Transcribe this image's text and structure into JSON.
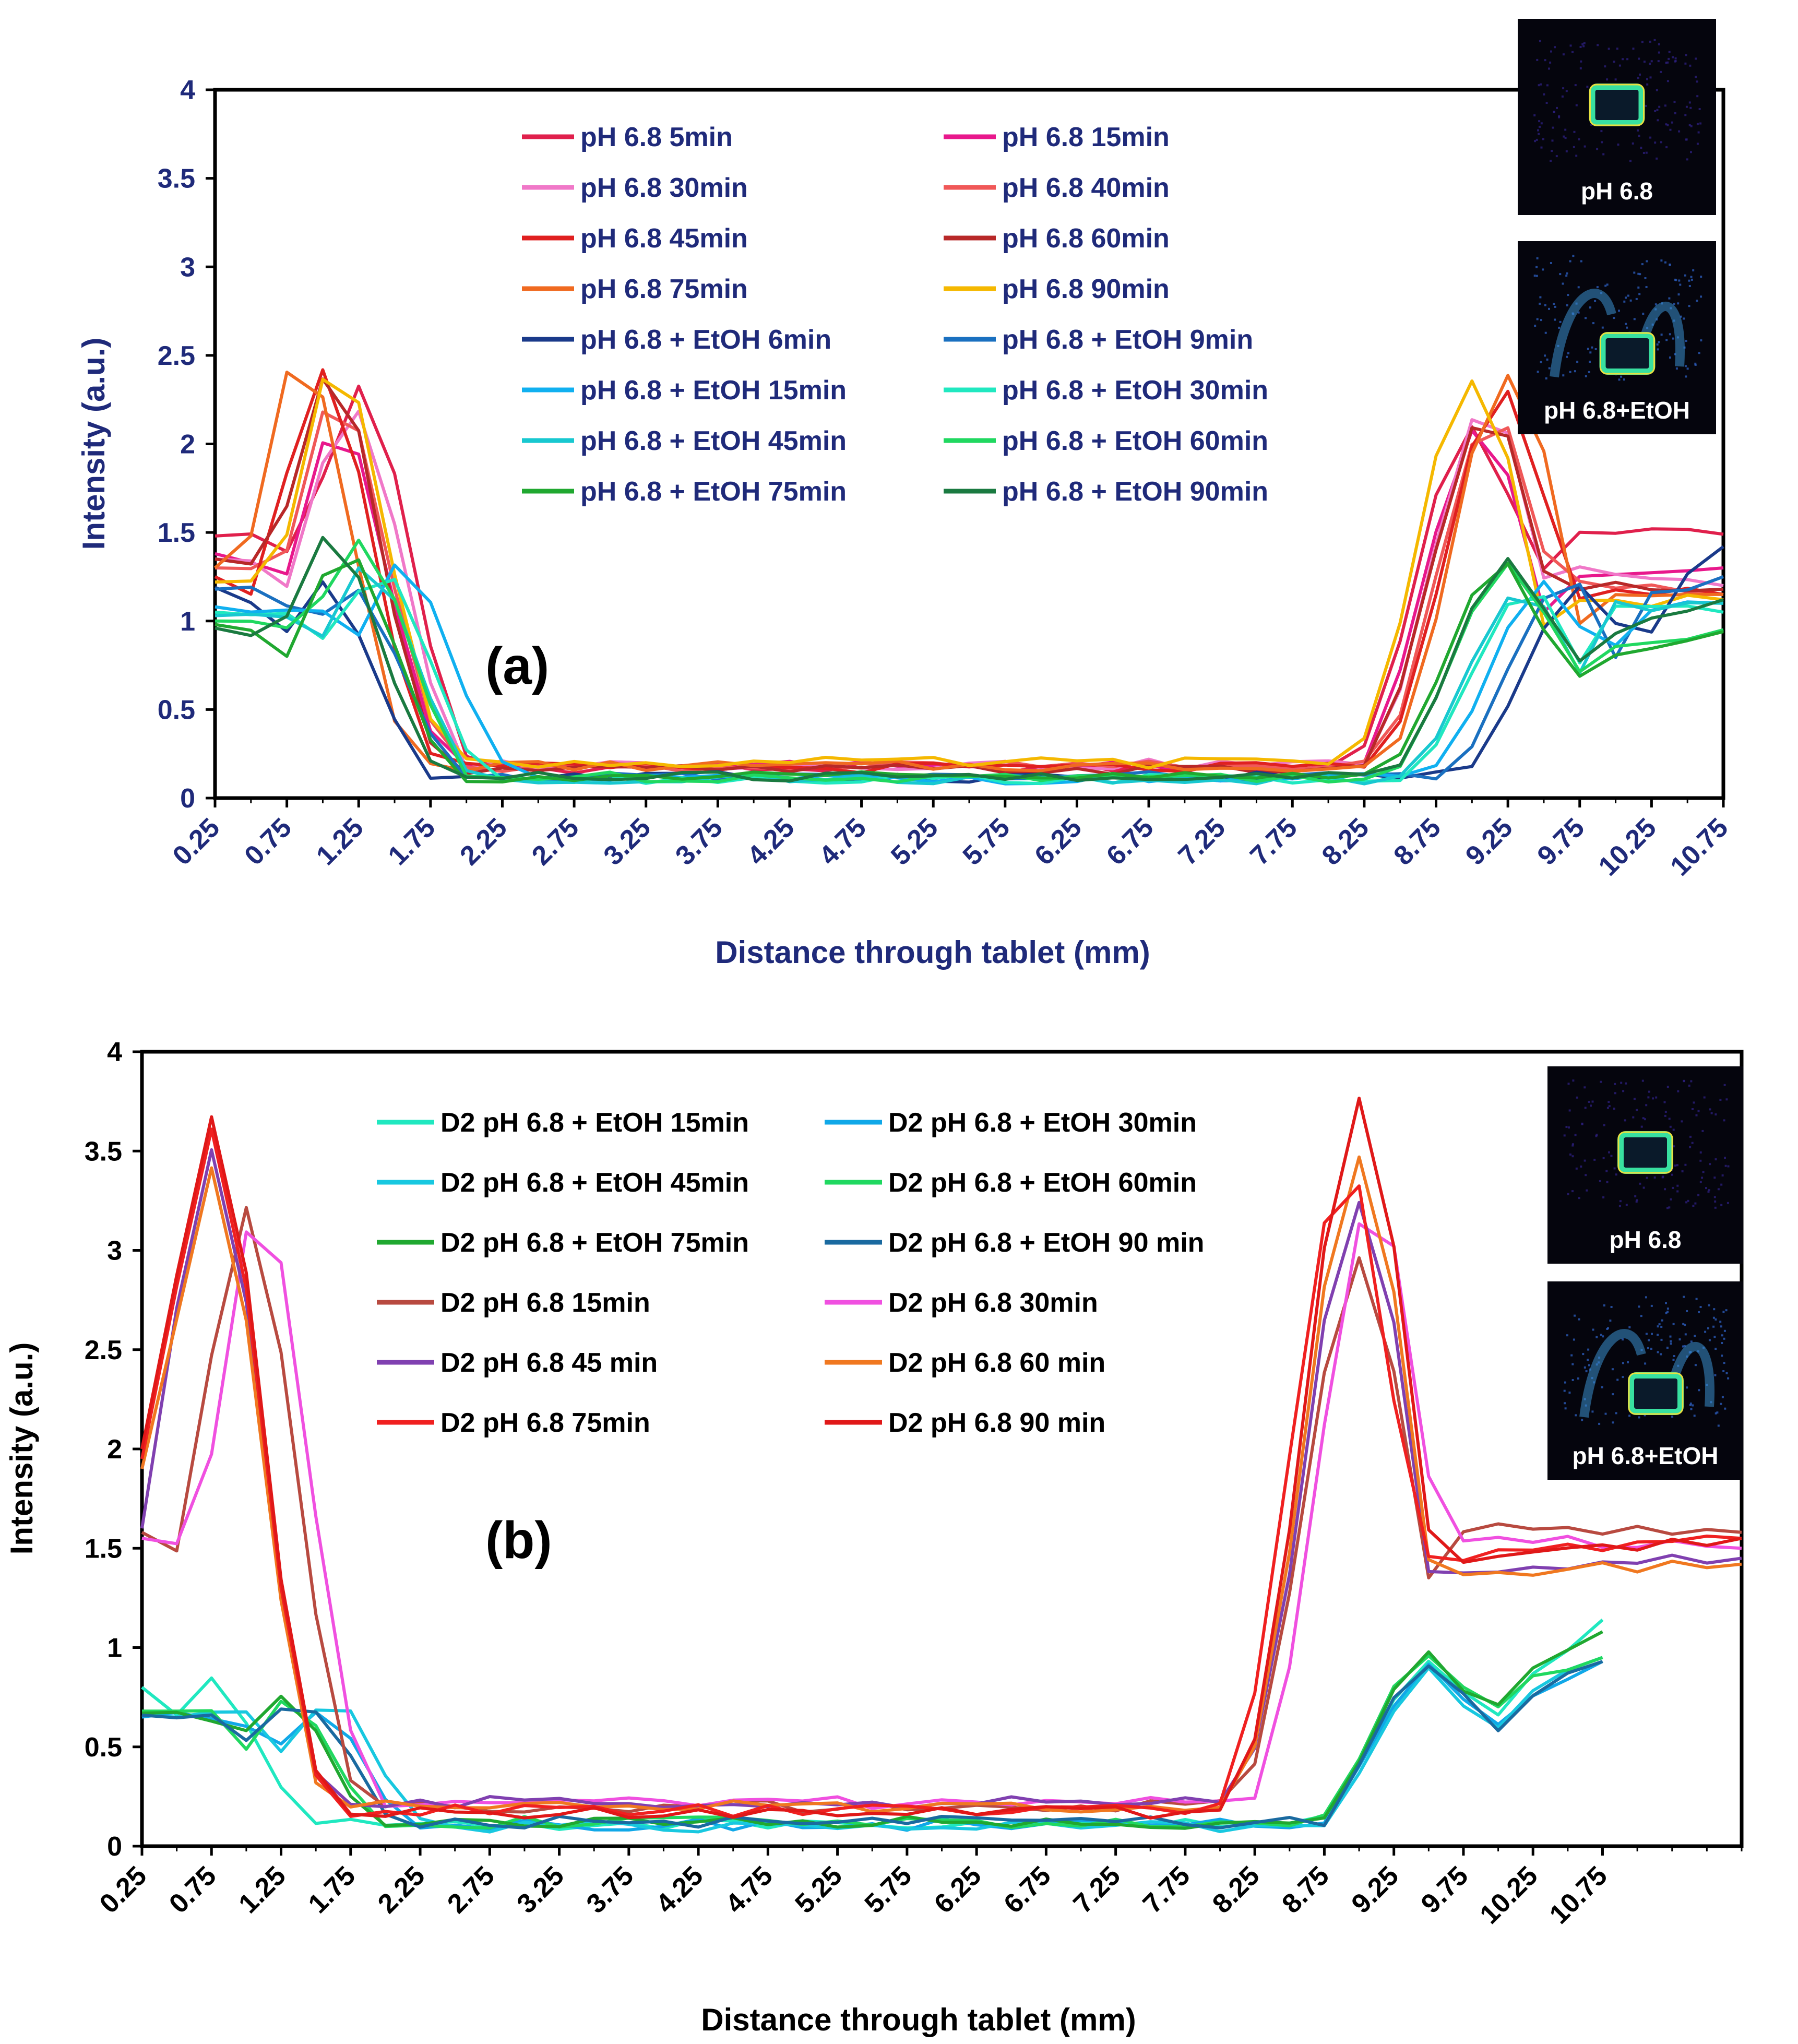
{
  "chart_data": [
    {
      "type": "line",
      "panel_label": "(a)",
      "xlabel": "Distance through tablet (mm)",
      "ylabel": "Intensity (a.u.)",
      "ylim": [
        0,
        4
      ],
      "y_ticks": [
        "0",
        "0.5",
        "1",
        "1.5",
        "2",
        "2.5",
        "3",
        "3.5",
        "4"
      ],
      "x_tick_labels": [
        "0.25",
        "0.75",
        "1.25",
        "1.75",
        "2.25",
        "2.75",
        "3.25",
        "3.75",
        "4.25",
        "4.75",
        "5.25",
        "5.75",
        "6.25",
        "6.75",
        "7.25",
        "7.75",
        "8.25",
        "8.75",
        "9.25",
        "9.75",
        "10.25",
        "10.75"
      ],
      "xlim": [
        0.25,
        10.75
      ],
      "axis_text_color": "#1f2a7a",
      "insets": [
        "pH 6.8",
        "pH 6.8+EtOH"
      ],
      "series": [
        {
          "name": "pH 6.8 5min",
          "color": "#e0204c",
          "peak_left": 2.34,
          "peak_left_x": 1.25,
          "peak_right": 2.12,
          "peak_right_x": 9.0,
          "start": 1.48,
          "end": 1.49,
          "right_trail": 1.52,
          "base": 0.17
        },
        {
          "name": "pH 6.8 15min",
          "color": "#e8188c",
          "peak_left": 2.1,
          "peak_left_x": 1.1,
          "peak_right": 2.08,
          "peak_right_x": 9.05,
          "start": 1.38,
          "end": 1.3,
          "right_trail": 1.25,
          "base": 0.18
        },
        {
          "name": "pH 6.8 30min",
          "color": "#f078c8",
          "peak_left": 2.2,
          "peak_left_x": 1.2,
          "peak_right": 2.2,
          "peak_right_x": 9.1,
          "start": 1.35,
          "end": 1.2,
          "right_trail": 1.3,
          "base": 0.19
        },
        {
          "name": "pH 6.8 40min",
          "color": "#f05858",
          "peak_left": 2.3,
          "peak_left_x": 1.1,
          "peak_right": 2.15,
          "peak_right_x": 9.15,
          "start": 1.3,
          "end": 1.15,
          "right_trail": 1.22,
          "base": 0.18
        },
        {
          "name": "pH 6.8 45min",
          "color": "#e02020",
          "peak_left": 2.4,
          "peak_left_x": 1.0,
          "peak_right": 2.3,
          "peak_right_x": 9.2,
          "start": 1.25,
          "end": 1.15,
          "right_trail": 1.2,
          "base": 0.17
        },
        {
          "name": "pH 6.8 60min",
          "color": "#b82828",
          "peak_left": 2.42,
          "peak_left_x": 1.05,
          "peak_right": 2.18,
          "peak_right_x": 9.1,
          "start": 1.35,
          "end": 1.18,
          "right_trail": 1.2,
          "base": 0.16
        },
        {
          "name": "pH 6.8 75min",
          "color": "#f06a20",
          "peak_left": 2.48,
          "peak_left_x": 0.85,
          "peak_right": 2.4,
          "peak_right_x": 9.25,
          "start": 1.3,
          "end": 1.15,
          "right_trail": 1.15,
          "base": 0.18
        },
        {
          "name": "pH 6.8 90min",
          "color": "#f5b800",
          "peak_left": 2.48,
          "peak_left_x": 1.1,
          "peak_right": 2.38,
          "peak_right_x": 9.0,
          "start": 1.22,
          "end": 1.12,
          "right_trail": 1.1,
          "base": 0.2
        },
        {
          "name": "pH 6.8 + EtOH 6min",
          "color": "#1a3a8a",
          "peak_left": 1.22,
          "peak_left_x": 1.0,
          "peak_right": 1.2,
          "peak_right_x": 9.75,
          "start": 1.19,
          "end": 1.42,
          "right_trail": 1.15,
          "base": 0.12
        },
        {
          "name": "pH 6.8 + EtOH 9min",
          "color": "#1a70c0",
          "peak_left": 1.2,
          "peak_left_x": 1.2,
          "peak_right": 1.22,
          "peak_right_x": 9.65,
          "start": 1.18,
          "end": 1.25,
          "right_trail": 1.15,
          "base": 0.12
        },
        {
          "name": "pH 6.8 + EtOH 15min",
          "color": "#10b0f0",
          "peak_left": 1.3,
          "peak_left_x": 1.55,
          "peak_right": 1.2,
          "peak_right_x": 9.5,
          "start": 1.08,
          "end": 1.1,
          "right_trail": 1.05,
          "base": 0.11
        },
        {
          "name": "pH 6.8 + EtOH 30min",
          "color": "#20e8c0",
          "peak_left": 1.3,
          "peak_left_x": 1.4,
          "peak_right": 1.18,
          "peak_right_x": 9.4,
          "start": 1.05,
          "end": 1.05,
          "right_trail": 1.1,
          "base": 0.11
        },
        {
          "name": "pH 6.8 + EtOH 45min",
          "color": "#18c8d0",
          "peak_left": 1.32,
          "peak_left_x": 1.3,
          "peak_right": 1.2,
          "peak_right_x": 9.35,
          "start": 1.03,
          "end": 1.1,
          "right_trail": 1.08,
          "base": 0.11
        },
        {
          "name": "pH 6.8 + EtOH 60min",
          "color": "#20d860",
          "peak_left": 1.45,
          "peak_left_x": 1.25,
          "peak_right": 1.3,
          "peak_right_x": 9.25,
          "start": 1.0,
          "end": 0.95,
          "right_trail": 0.85,
          "base": 0.12
        },
        {
          "name": "pH 6.8 + EtOH 75min",
          "color": "#20a830",
          "peak_left": 1.4,
          "peak_left_x": 1.15,
          "peak_right": 1.32,
          "peak_right_x": 9.2,
          "start": 0.98,
          "end": 0.94,
          "right_trail": 0.78,
          "base": 0.12
        },
        {
          "name": "pH 6.8 + EtOH 90min",
          "color": "#1a7a40",
          "peak_left": 1.48,
          "peak_left_x": 1.05,
          "peak_right": 1.34,
          "peak_right_x": 9.25,
          "start": 0.96,
          "end": 1.12,
          "right_trail": 0.92,
          "base": 0.12
        }
      ]
    },
    {
      "type": "line",
      "panel_label": "(b)",
      "xlabel": "Distance through tablet (mm)",
      "ylabel": "Intensity (a.u.)",
      "ylim": [
        0,
        4
      ],
      "y_ticks": [
        "0",
        "0.5",
        "1",
        "1.5",
        "2",
        "2.5",
        "3",
        "3.5",
        "4"
      ],
      "x_tick_labels": [
        "0.25",
        "0.75",
        "1.25",
        "1.75",
        "2.25",
        "2.75",
        "3.25",
        "3.75",
        "4.25",
        "4.75",
        "5.25",
        "5.75",
        "6.25",
        "6.75",
        "7.25",
        "7.75",
        "8.25",
        "8.75",
        "9.25",
        "9.75",
        "10.25",
        "10.75"
      ],
      "xlim": [
        0.25,
        11.75
      ],
      "axis_text_color": "#000000",
      "insets": [
        "pH 6.8",
        "pH 6.8+EtOH"
      ],
      "series": [
        {
          "name": "D2 pH 6.8 + EtOH 15min",
          "color": "#20e8c0",
          "peak_left": 0.83,
          "peak_left_x": 0.75,
          "peak_right": 0.95,
          "peak_right_x": 9.5,
          "start": 0.8,
          "end": 1.14,
          "right_trail": 0.8,
          "base": 0.11,
          "x_end": 10.75
        },
        {
          "name": "D2 pH 6.8 + EtOH 30min",
          "color": "#10a8e8",
          "peak_left": 0.7,
          "peak_left_x": 1.5,
          "peak_right": 0.9,
          "peak_right_x": 9.5,
          "start": 0.65,
          "end": 0.93,
          "right_trail": 0.7,
          "base": 0.11,
          "x_end": 10.75
        },
        {
          "name": "D2 pH 6.8 + EtOH 45min",
          "color": "#18c8e0",
          "peak_left": 0.72,
          "peak_left_x": 1.6,
          "peak_right": 0.88,
          "peak_right_x": 9.5,
          "start": 0.66,
          "end": 0.95,
          "right_trail": 0.72,
          "base": 0.1,
          "x_end": 10.75
        },
        {
          "name": "D2 pH 6.8 + EtOH 60min",
          "color": "#20d860",
          "peak_left": 0.74,
          "peak_left_x": 1.3,
          "peak_right": 0.97,
          "peak_right_x": 9.5,
          "start": 0.68,
          "end": 0.95,
          "right_trail": 0.83,
          "base": 0.12,
          "x_end": 10.75
        },
        {
          "name": "D2 pH 6.8 + EtOH 75min",
          "color": "#20a830",
          "peak_left": 0.77,
          "peak_left_x": 1.25,
          "peak_right": 0.95,
          "peak_right_x": 9.5,
          "start": 0.67,
          "end": 1.08,
          "right_trail": 0.85,
          "base": 0.12,
          "x_end": 10.75
        },
        {
          "name": "D2 pH 6.8 + EtOH 90 min",
          "color": "#1a6aa0",
          "peak_left": 0.73,
          "peak_left_x": 1.4,
          "peak_right": 0.93,
          "peak_right_x": 9.5,
          "start": 0.66,
          "end": 0.93,
          "right_trail": 0.7,
          "base": 0.12,
          "x_end": 10.75
        },
        {
          "name": "D2 pH 6.8 15min",
          "color": "#b84a40",
          "peak_left": 3.2,
          "peak_left_x": 1.0,
          "peak_right": 2.98,
          "peak_right_x": 9.0,
          "start": 1.58,
          "end": 1.58,
          "right_trail": 1.6,
          "base": 0.2,
          "x_end": 11.75
        },
        {
          "name": "D2 pH 6.8 30min",
          "color": "#f050e0",
          "peak_left": 3.22,
          "peak_left_x": 1.1,
          "peak_right": 3.24,
          "peak_right_x": 9.1,
          "start": 1.55,
          "end": 1.5,
          "right_trail": 1.55,
          "base": 0.22,
          "x_end": 11.75
        },
        {
          "name": "D2 pH 6.8 45 min",
          "color": "#8040b0",
          "peak_left": 3.5,
          "peak_left_x": 0.75,
          "peak_right": 3.27,
          "peak_right_x": 9.0,
          "start": 1.6,
          "end": 1.45,
          "right_trail": 1.4,
          "base": 0.22,
          "x_end": 11.75
        },
        {
          "name": "D2 pH 6.8 60 min",
          "color": "#f07820",
          "peak_left": 3.44,
          "peak_left_x": 0.75,
          "peak_right": 3.48,
          "peak_right_x": 9.0,
          "start": 1.9,
          "end": 1.42,
          "right_trail": 1.38,
          "base": 0.2,
          "x_end": 11.75
        },
        {
          "name": "D2 pH 6.8 75min",
          "color": "#f02020",
          "peak_left": 3.6,
          "peak_left_x": 0.75,
          "peak_right": 3.42,
          "peak_right_x": 8.9,
          "start": 1.95,
          "end": 1.55,
          "right_trail": 1.45,
          "base": 0.18,
          "x_end": 11.75
        },
        {
          "name": "D2 pH 6.8 90 min",
          "color": "#e01818",
          "peak_left": 3.69,
          "peak_left_x": 0.75,
          "peak_right": 3.76,
          "peak_right_x": 9.0,
          "start": 2.0,
          "end": 1.55,
          "right_trail": 1.45,
          "base": 0.17,
          "x_end": 11.75
        }
      ]
    }
  ]
}
